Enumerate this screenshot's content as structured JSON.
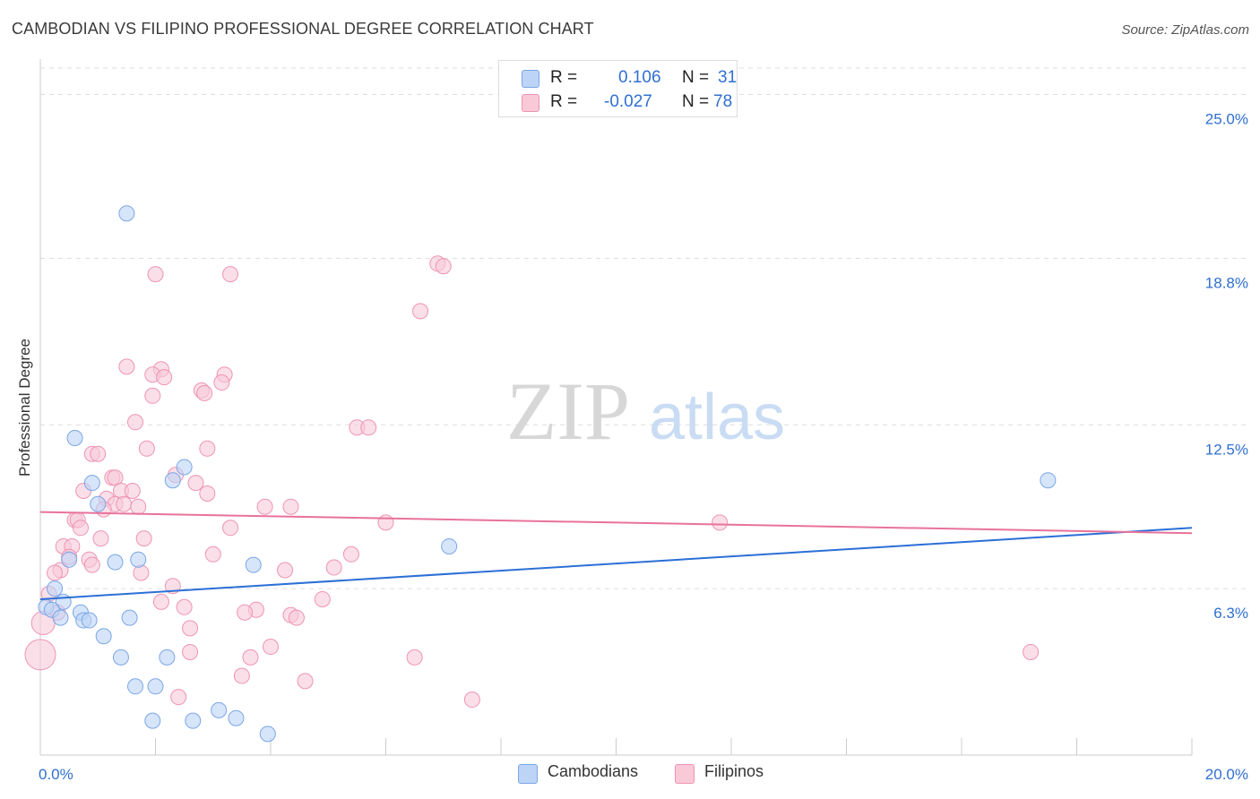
{
  "header": {
    "title": "CAMBODIAN VS FILIPINO PROFESSIONAL DEGREE CORRELATION CHART",
    "source": "Source: ZipAtlas.com"
  },
  "watermark": {
    "zip": "ZIP",
    "atlas": "atlas"
  },
  "legend_top": {
    "rows": [
      {
        "r_label": "R =",
        "r_value": "0.106",
        "n_label": "N =",
        "n_value": "31"
      },
      {
        "r_label": "R =",
        "r_value": "-0.027",
        "n_label": "N =",
        "n_value": "78"
      }
    ]
  },
  "legend_bottom": {
    "items": [
      "Cambodians",
      "Filipinos"
    ]
  },
  "colors": {
    "cambodians_fill": "#bcd4f6",
    "cambodians_stroke": "#7aa6e6",
    "cambodians_line": "#2b6fd6",
    "filipinos_fill": "#f9c9d8",
    "filipinos_stroke": "#ee94b2",
    "filipinos_line": "#e8729b",
    "grid": "#dddddd",
    "tick_label": "#2f6fd0"
  },
  "chart_data": {
    "type": "scatter",
    "title": "CAMBODIAN VS FILIPINO PROFESSIONAL DEGREE CORRELATION CHART",
    "xlabel": "",
    "ylabel": "Professional Degree",
    "xlim": [
      0,
      20
    ],
    "ylim": [
      0,
      26
    ],
    "x_tick_labels": [
      "0.0%",
      "20.0%"
    ],
    "y_ticks": [
      6.3,
      12.5,
      18.8,
      25.0
    ],
    "y_tick_labels": [
      "6.3%",
      "12.5%",
      "18.8%",
      "25.0%"
    ],
    "series": [
      {
        "name": "Cambodians",
        "R": 0.106,
        "N": 31,
        "trend": {
          "x": [
            0,
            20
          ],
          "y": [
            5.9,
            8.6
          ]
        },
        "points": [
          [
            1.5,
            20.5
          ],
          [
            0.6,
            12.0
          ],
          [
            2.5,
            10.9
          ],
          [
            0.9,
            10.3
          ],
          [
            2.3,
            10.4
          ],
          [
            1.0,
            9.5
          ],
          [
            17.5,
            10.4
          ],
          [
            7.1,
            7.9
          ],
          [
            1.7,
            7.4
          ],
          [
            1.3,
            7.3
          ],
          [
            3.7,
            7.2
          ],
          [
            0.5,
            7.4
          ],
          [
            0.25,
            6.3
          ],
          [
            0.4,
            5.8
          ],
          [
            0.1,
            5.6
          ],
          [
            0.2,
            5.5
          ],
          [
            0.7,
            5.4
          ],
          [
            0.35,
            5.2
          ],
          [
            0.75,
            5.1
          ],
          [
            0.85,
            5.1
          ],
          [
            1.55,
            5.2
          ],
          [
            1.1,
            4.5
          ],
          [
            1.4,
            3.7
          ],
          [
            2.2,
            3.7
          ],
          [
            1.65,
            2.6
          ],
          [
            2.0,
            2.6
          ],
          [
            3.1,
            1.7
          ],
          [
            3.4,
            1.4
          ],
          [
            1.95,
            1.3
          ],
          [
            2.65,
            1.3
          ],
          [
            3.95,
            0.8
          ]
        ]
      },
      {
        "name": "Filipinos",
        "R": -0.027,
        "N": 78,
        "trend": {
          "x": [
            0,
            20
          ],
          "y": [
            9.2,
            8.4
          ]
        },
        "points": [
          [
            6.9,
            18.6
          ],
          [
            7.0,
            18.5
          ],
          [
            2.0,
            18.2
          ],
          [
            3.3,
            18.2
          ],
          [
            6.6,
            16.8
          ],
          [
            1.5,
            14.7
          ],
          [
            2.1,
            14.6
          ],
          [
            1.95,
            14.4
          ],
          [
            2.15,
            14.3
          ],
          [
            3.2,
            14.4
          ],
          [
            3.15,
            14.1
          ],
          [
            2.8,
            13.8
          ],
          [
            2.85,
            13.7
          ],
          [
            1.95,
            13.6
          ],
          [
            1.65,
            12.6
          ],
          [
            5.5,
            12.4
          ],
          [
            5.7,
            12.4
          ],
          [
            1.85,
            11.6
          ],
          [
            2.9,
            11.6
          ],
          [
            0.9,
            11.4
          ],
          [
            1.0,
            11.4
          ],
          [
            1.25,
            10.5
          ],
          [
            1.3,
            10.5
          ],
          [
            2.35,
            10.6
          ],
          [
            2.7,
            10.3
          ],
          [
            0.75,
            10.0
          ],
          [
            1.4,
            10.0
          ],
          [
            1.6,
            10.0
          ],
          [
            2.9,
            9.9
          ],
          [
            1.15,
            9.7
          ],
          [
            1.3,
            9.5
          ],
          [
            1.45,
            9.5
          ],
          [
            1.7,
            9.4
          ],
          [
            1.1,
            9.3
          ],
          [
            3.9,
            9.4
          ],
          [
            4.35,
            9.4
          ],
          [
            0.6,
            8.9
          ],
          [
            0.65,
            8.9
          ],
          [
            6.0,
            8.8
          ],
          [
            11.8,
            8.8
          ],
          [
            3.3,
            8.6
          ],
          [
            0.7,
            8.6
          ],
          [
            1.8,
            8.2
          ],
          [
            1.05,
            8.2
          ],
          [
            0.4,
            7.9
          ],
          [
            0.55,
            7.9
          ],
          [
            5.4,
            7.6
          ],
          [
            3.0,
            7.6
          ],
          [
            0.5,
            7.5
          ],
          [
            0.85,
            7.4
          ],
          [
            0.9,
            7.2
          ],
          [
            5.1,
            7.1
          ],
          [
            4.25,
            7.0
          ],
          [
            1.75,
            6.9
          ],
          [
            0.35,
            7.0
          ],
          [
            0.25,
            6.9
          ],
          [
            2.3,
            6.4
          ],
          [
            0.15,
            6.1
          ],
          [
            4.9,
            5.9
          ],
          [
            2.1,
            5.8
          ],
          [
            2.5,
            5.6
          ],
          [
            3.75,
            5.5
          ],
          [
            3.55,
            5.4
          ],
          [
            4.35,
            5.3
          ],
          [
            4.45,
            5.2
          ],
          [
            0.3,
            5.4
          ],
          [
            2.6,
            4.8
          ],
          [
            0.05,
            5.0
          ],
          [
            0.0,
            3.8
          ],
          [
            4.0,
            4.1
          ],
          [
            2.6,
            3.9
          ],
          [
            3.65,
            3.7
          ],
          [
            6.5,
            3.7
          ],
          [
            17.2,
            3.9
          ],
          [
            3.5,
            3.0
          ],
          [
            4.6,
            2.8
          ],
          [
            2.4,
            2.2
          ],
          [
            7.5,
            2.1
          ]
        ]
      }
    ]
  }
}
